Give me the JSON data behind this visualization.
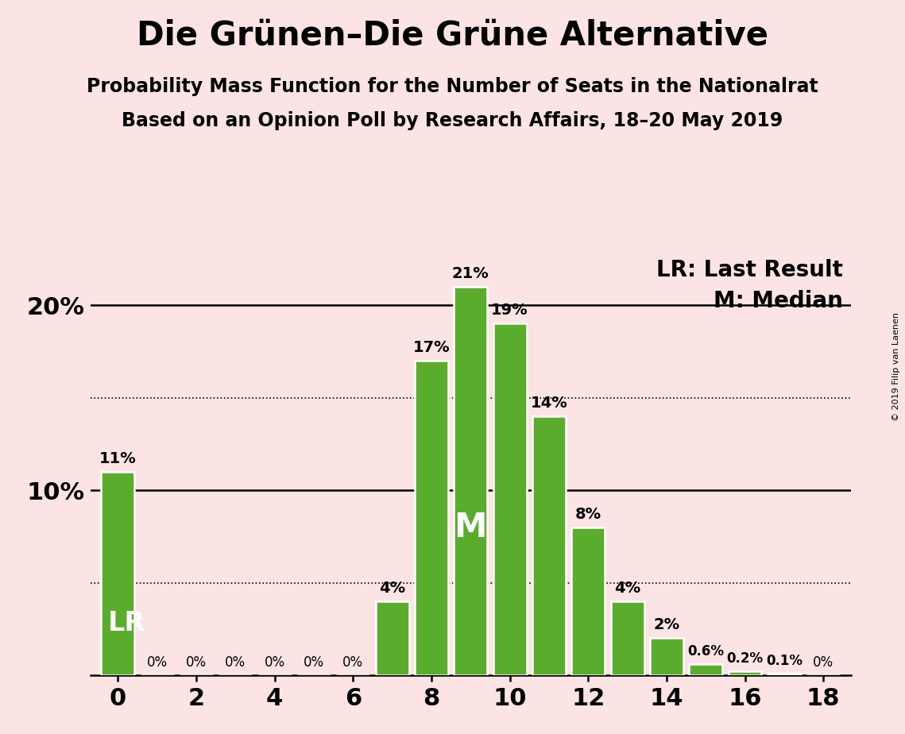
{
  "title": "Die Grünen–Die Grüne Alternative",
  "subtitle1": "Probability Mass Function for the Number of Seats in the Nationalrat",
  "subtitle2": "Based on an Opinion Poll by Research Affairs, 18–20 May 2019",
  "copyright": "© 2019 Filip van Laenen",
  "bar_values": [
    11,
    0,
    0,
    0,
    0,
    0,
    0,
    4,
    17,
    21,
    19,
    14,
    8,
    4,
    2,
    0.6,
    0.2,
    0.1,
    0
  ],
  "bar_labels": [
    "11%",
    "0%",
    "0%",
    "0%",
    "0%",
    "0%",
    "0%",
    "4%",
    "17%",
    "21%",
    "19%",
    "14%",
    "8%",
    "4%",
    "2%",
    "0.6%",
    "0.2%",
    "0.1%",
    "0%"
  ],
  "x_positions": [
    0,
    1,
    2,
    3,
    4,
    5,
    6,
    7,
    8,
    9,
    10,
    11,
    12,
    13,
    14,
    15,
    16,
    17,
    18
  ],
  "bar_color": "#5aad2c",
  "background_color": "#fce4e4",
  "bar_edge_color": "#ffffff",
  "ylim": [
    0,
    23
  ],
  "yticks": [
    0,
    10,
    20
  ],
  "ytick_labels": [
    "",
    "10%",
    "20%"
  ],
  "xticks": [
    0,
    2,
    4,
    6,
    8,
    10,
    12,
    14,
    16,
    18
  ],
  "solid_hlines": [
    10,
    20
  ],
  "dotted_hlines": [
    5,
    15
  ],
  "lr_seat": 0,
  "median_seat": 9,
  "legend_lr": "LR: Last Result",
  "legend_m": "M: Median",
  "title_fontsize": 30,
  "subtitle_fontsize": 17,
  "axis_tick_fontsize": 22,
  "bar_label_fontsize": 14,
  "median_label_fontsize": 30,
  "lr_label_fontsize": 24,
  "legend_fontsize": 20
}
